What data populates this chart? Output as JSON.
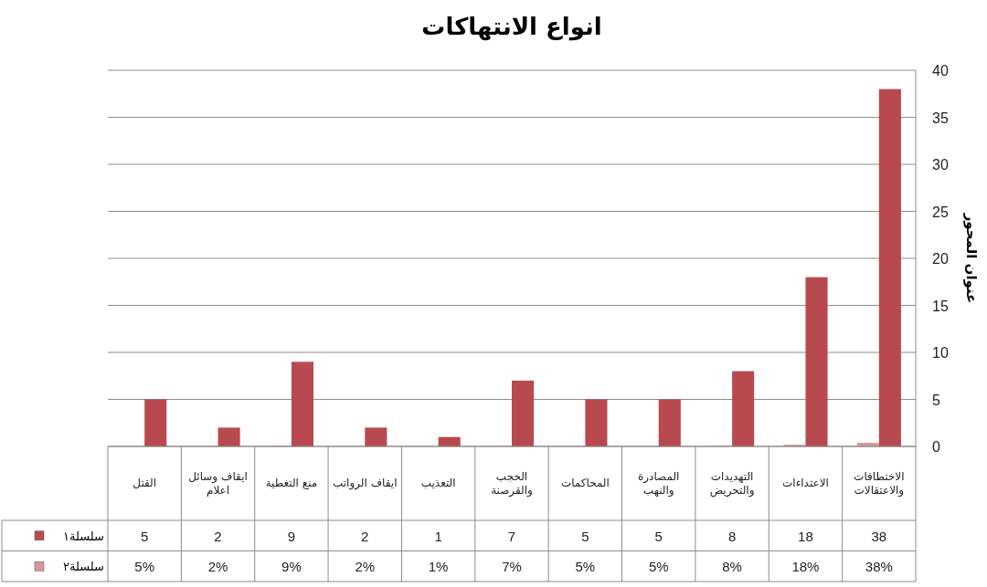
{
  "chart_data": {
    "type": "bar",
    "title": "انواع الانتهاكات",
    "ylabel": "عنوان المحور",
    "categories": [
      "القتل",
      "ايقاف وسائل اعلام",
      "منع التغطية",
      "ايقاف الرواتب",
      "التعذيب",
      "الحجب والقرصنة",
      "المحاكمات",
      "المصادرة والنهب",
      "التهديدات والتحريض",
      "الاعتداءات",
      "الاختطافات والاعتقالات"
    ],
    "series": [
      {
        "name": "سلسلة١",
        "color": "#b84a4f",
        "values": [
          5,
          2,
          9,
          2,
          1,
          7,
          5,
          5,
          8,
          18,
          38
        ]
      },
      {
        "name": "سلسلة٢",
        "color": "#d9969a",
        "values": [
          0.05,
          0.02,
          0.09,
          0.02,
          0.01,
          0.07,
          0.05,
          0.05,
          0.08,
          0.18,
          0.38
        ],
        "value_labels": [
          "5%",
          "2%",
          "9%",
          "2%",
          "1%",
          "7%",
          "5%",
          "5%",
          "8%",
          "18%",
          "38%"
        ]
      }
    ],
    "ylim": [
      0,
      40
    ],
    "yticks": [
      0,
      5,
      10,
      15,
      20,
      25,
      30,
      35,
      40
    ],
    "grid": "y",
    "data_labels": true,
    "legend": "bottom left"
  }
}
